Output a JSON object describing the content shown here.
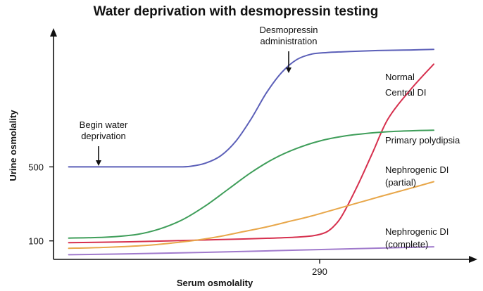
{
  "chart_data": {
    "type": "line",
    "title": "Water deprivation with desmopressin testing",
    "xlabel": "Serum osmolality",
    "ylabel": "Urine osmolality",
    "x_ticks": [
      {
        "value": 290,
        "label": "290"
      }
    ],
    "y_ticks": [
      {
        "value": 100,
        "label": "100"
      },
      {
        "value": 500,
        "label": "500"
      }
    ],
    "xlim": [
      255,
      310
    ],
    "ylim": [
      0,
      1250
    ],
    "grid": false,
    "annotations": [
      {
        "id": "begin",
        "lines": [
          "Begin water",
          "deprivation"
        ],
        "x": 260,
        "y": 500
      },
      {
        "id": "desmo",
        "lines": [
          "Desmopressin",
          "administration"
        ],
        "x": 290,
        "y": 1150
      }
    ],
    "series": [
      {
        "name": "Normal",
        "color": "#5b5fb8",
        "x": [
          257,
          265,
          271,
          273,
          275,
          277,
          279,
          281,
          283,
          285,
          287,
          289,
          291,
          293,
          295,
          297,
          299,
          302,
          305
        ],
        "values": [
          500,
          500,
          500,
          503,
          520,
          560,
          640,
          760,
          900,
          1010,
          1080,
          1110,
          1118,
          1122,
          1125,
          1128,
          1130,
          1132,
          1135
        ]
      },
      {
        "name": "Central DI",
        "lines": [
          "Central DI"
        ],
        "color": "#d6304e",
        "x": [
          257,
          265,
          270,
          275,
          280,
          284,
          287,
          289,
          290,
          291,
          292,
          293,
          295,
          297,
          299,
          302,
          305
        ],
        "values": [
          90,
          95,
          100,
          105,
          110,
          115,
          120,
          127,
          135,
          150,
          185,
          240,
          400,
          580,
          760,
          920,
          1055
        ]
      },
      {
        "name": "Primary polydipsia",
        "lines": [
          "Primary polydipsia"
        ],
        "color": "#3f9e5a",
        "x": [
          257,
          262,
          266,
          269,
          272,
          275,
          278,
          281,
          284,
          287,
          290,
          293,
          296,
          299,
          302,
          305
        ],
        "values": [
          115,
          120,
          135,
          165,
          215,
          290,
          380,
          470,
          545,
          600,
          640,
          665,
          680,
          690,
          695,
          698
        ]
      },
      {
        "name": "Nephrogenic DI (partial)",
        "lines": [
          "Nephrogenic DI",
          "(partial)"
        ],
        "color": "#e8a74a",
        "x": [
          257,
          262,
          267,
          271,
          274,
          277,
          280,
          283,
          286,
          289,
          292,
          295,
          298,
          302,
          305
        ],
        "values": [
          60,
          65,
          75,
          90,
          105,
          125,
          150,
          175,
          205,
          235,
          270,
          305,
          340,
          385,
          420
        ]
      },
      {
        "name": "Nephrogenic DI (complete)",
        "lines": [
          "Nephrogenic DI",
          "(complete)"
        ],
        "color": "#a07acc",
        "x": [
          257,
          265,
          275,
          285,
          295,
          305
        ],
        "values": [
          25,
          30,
          38,
          48,
          58,
          68
        ]
      }
    ]
  }
}
